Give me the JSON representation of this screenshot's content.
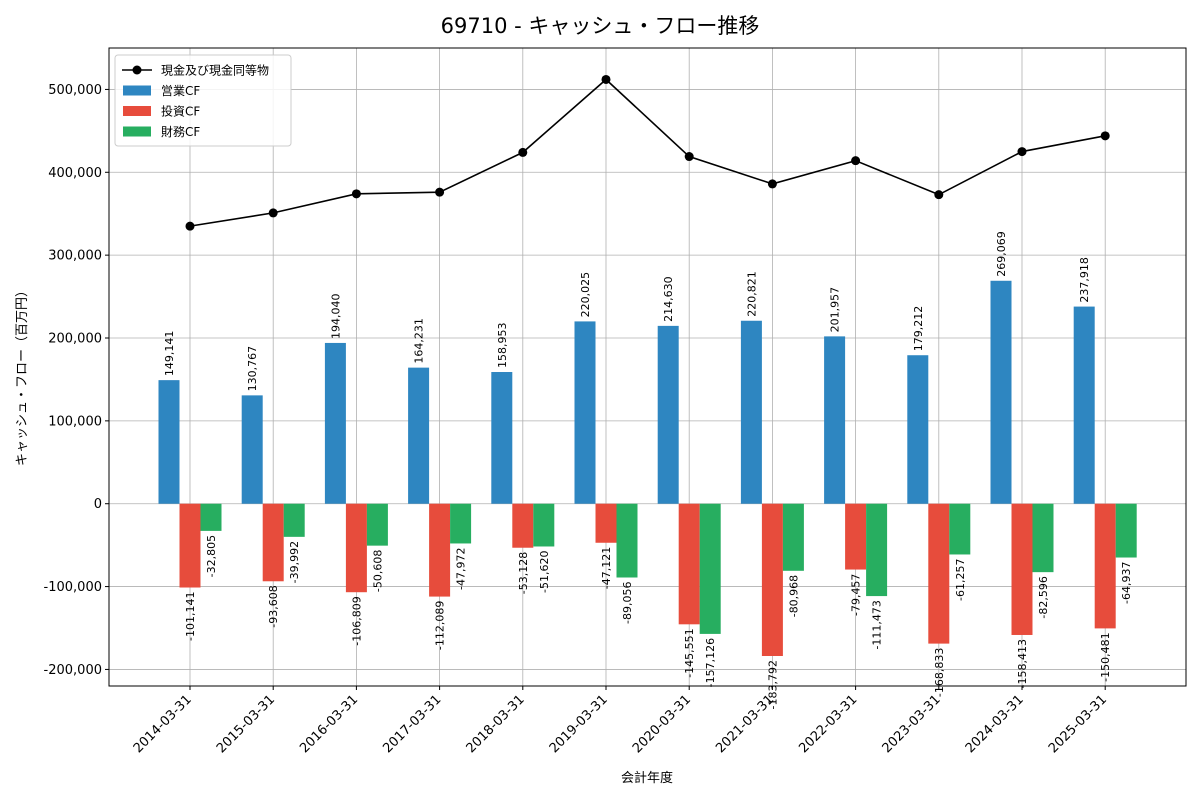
{
  "chart_data": {
    "type": "bar",
    "title": "69710 - キャッシュ・フロー推移",
    "xlabel": "会計年度",
    "ylabel": "キャッシュ・フロー（百万円）",
    "ylim": [
      -220000,
      550000
    ],
    "yticks": [
      -200000,
      -100000,
      0,
      100000,
      200000,
      300000,
      400000,
      500000
    ],
    "ytick_labels": [
      "-200,000",
      "-100,000",
      "0",
      "100,000",
      "200,000",
      "300,000",
      "400,000",
      "500,000"
    ],
    "grid": true,
    "legend_position": "top-left",
    "categories": [
      "2014-03-31",
      "2015-03-31",
      "2016-03-31",
      "2017-03-31",
      "2018-03-31",
      "2019-03-31",
      "2020-03-31",
      "2021-03-31",
      "2022-03-31",
      "2023-03-31",
      "2024-03-31",
      "2025-03-31"
    ],
    "series": [
      {
        "name": "営業CF",
        "type": "bar",
        "color": "#2e86c1",
        "values": [
          149141,
          130767,
          194040,
          164231,
          158953,
          220025,
          214630,
          220821,
          201957,
          179212,
          269069,
          237918
        ],
        "labels": [
          "149,141",
          "130,767",
          "194,040",
          "164,231",
          "158,953",
          "220,025",
          "214,630",
          "220,821",
          "201,957",
          "179,212",
          "269,069",
          "237,918"
        ]
      },
      {
        "name": "投資CF",
        "type": "bar",
        "color": "#e74c3c",
        "values": [
          -101141,
          -93608,
          -106809,
          -112089,
          -53128,
          -47121,
          -145551,
          -183792,
          -79457,
          -168833,
          -158413,
          -150481
        ],
        "labels": [
          "-101,141",
          "-93,608",
          "-106,809",
          "-112,089",
          "-53,128",
          "-47,121",
          "-145,551",
          "-183,792",
          "-79,457",
          "-168,833",
          "-158,413",
          "-150,481"
        ]
      },
      {
        "name": "財務CF",
        "type": "bar",
        "color": "#27ae60",
        "values": [
          -32805,
          -39992,
          -50608,
          -47972,
          -51620,
          -89056,
          -157126,
          -80968,
          -111473,
          -61257,
          -82596,
          -64937
        ],
        "labels": [
          "-32,805",
          "-39,992",
          "-50,608",
          "-47,972",
          "-51,620",
          "-89,056",
          "-157,126",
          "-80,968",
          "-111,473",
          "-61,257",
          "-82,596",
          "-64,937"
        ]
      },
      {
        "name": "現金及び現金同等物",
        "type": "line",
        "color": "#000000",
        "values": [
          335000,
          351000,
          374000,
          376000,
          424000,
          512000,
          419000,
          386000,
          414000,
          373000,
          425000,
          444000
        ]
      }
    ]
  }
}
